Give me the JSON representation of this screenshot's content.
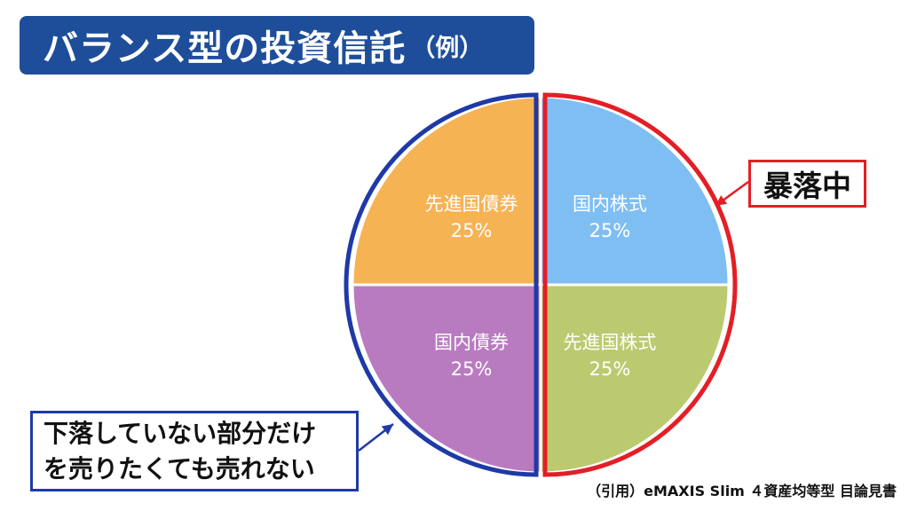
{
  "title": {
    "main": "バランス型の投資信託",
    "sub": "（例）"
  },
  "chart_data": {
    "type": "pie",
    "slices": [
      {
        "label": "国内株式",
        "percent_label": "25%",
        "value": 25,
        "color": "#7fbef3"
      },
      {
        "label": "先進国株式",
        "percent_label": "25%",
        "value": 25,
        "color": "#bbca6f"
      },
      {
        "label": "国内債券",
        "percent_label": "25%",
        "value": 25,
        "color": "#b97bc0"
      },
      {
        "label": "先進国債券",
        "percent_label": "25%",
        "value": 25,
        "color": "#f6b354"
      }
    ],
    "left_half_outline_color": "#1f3aa6",
    "right_half_outline_color": "#e41e26"
  },
  "callouts": {
    "crash": "暴落中",
    "unsold": "下落していない部分だけ\nを売りたくても売れない"
  },
  "source": "（引用）eMAXIS Slim ４資産均等型 目論見書"
}
